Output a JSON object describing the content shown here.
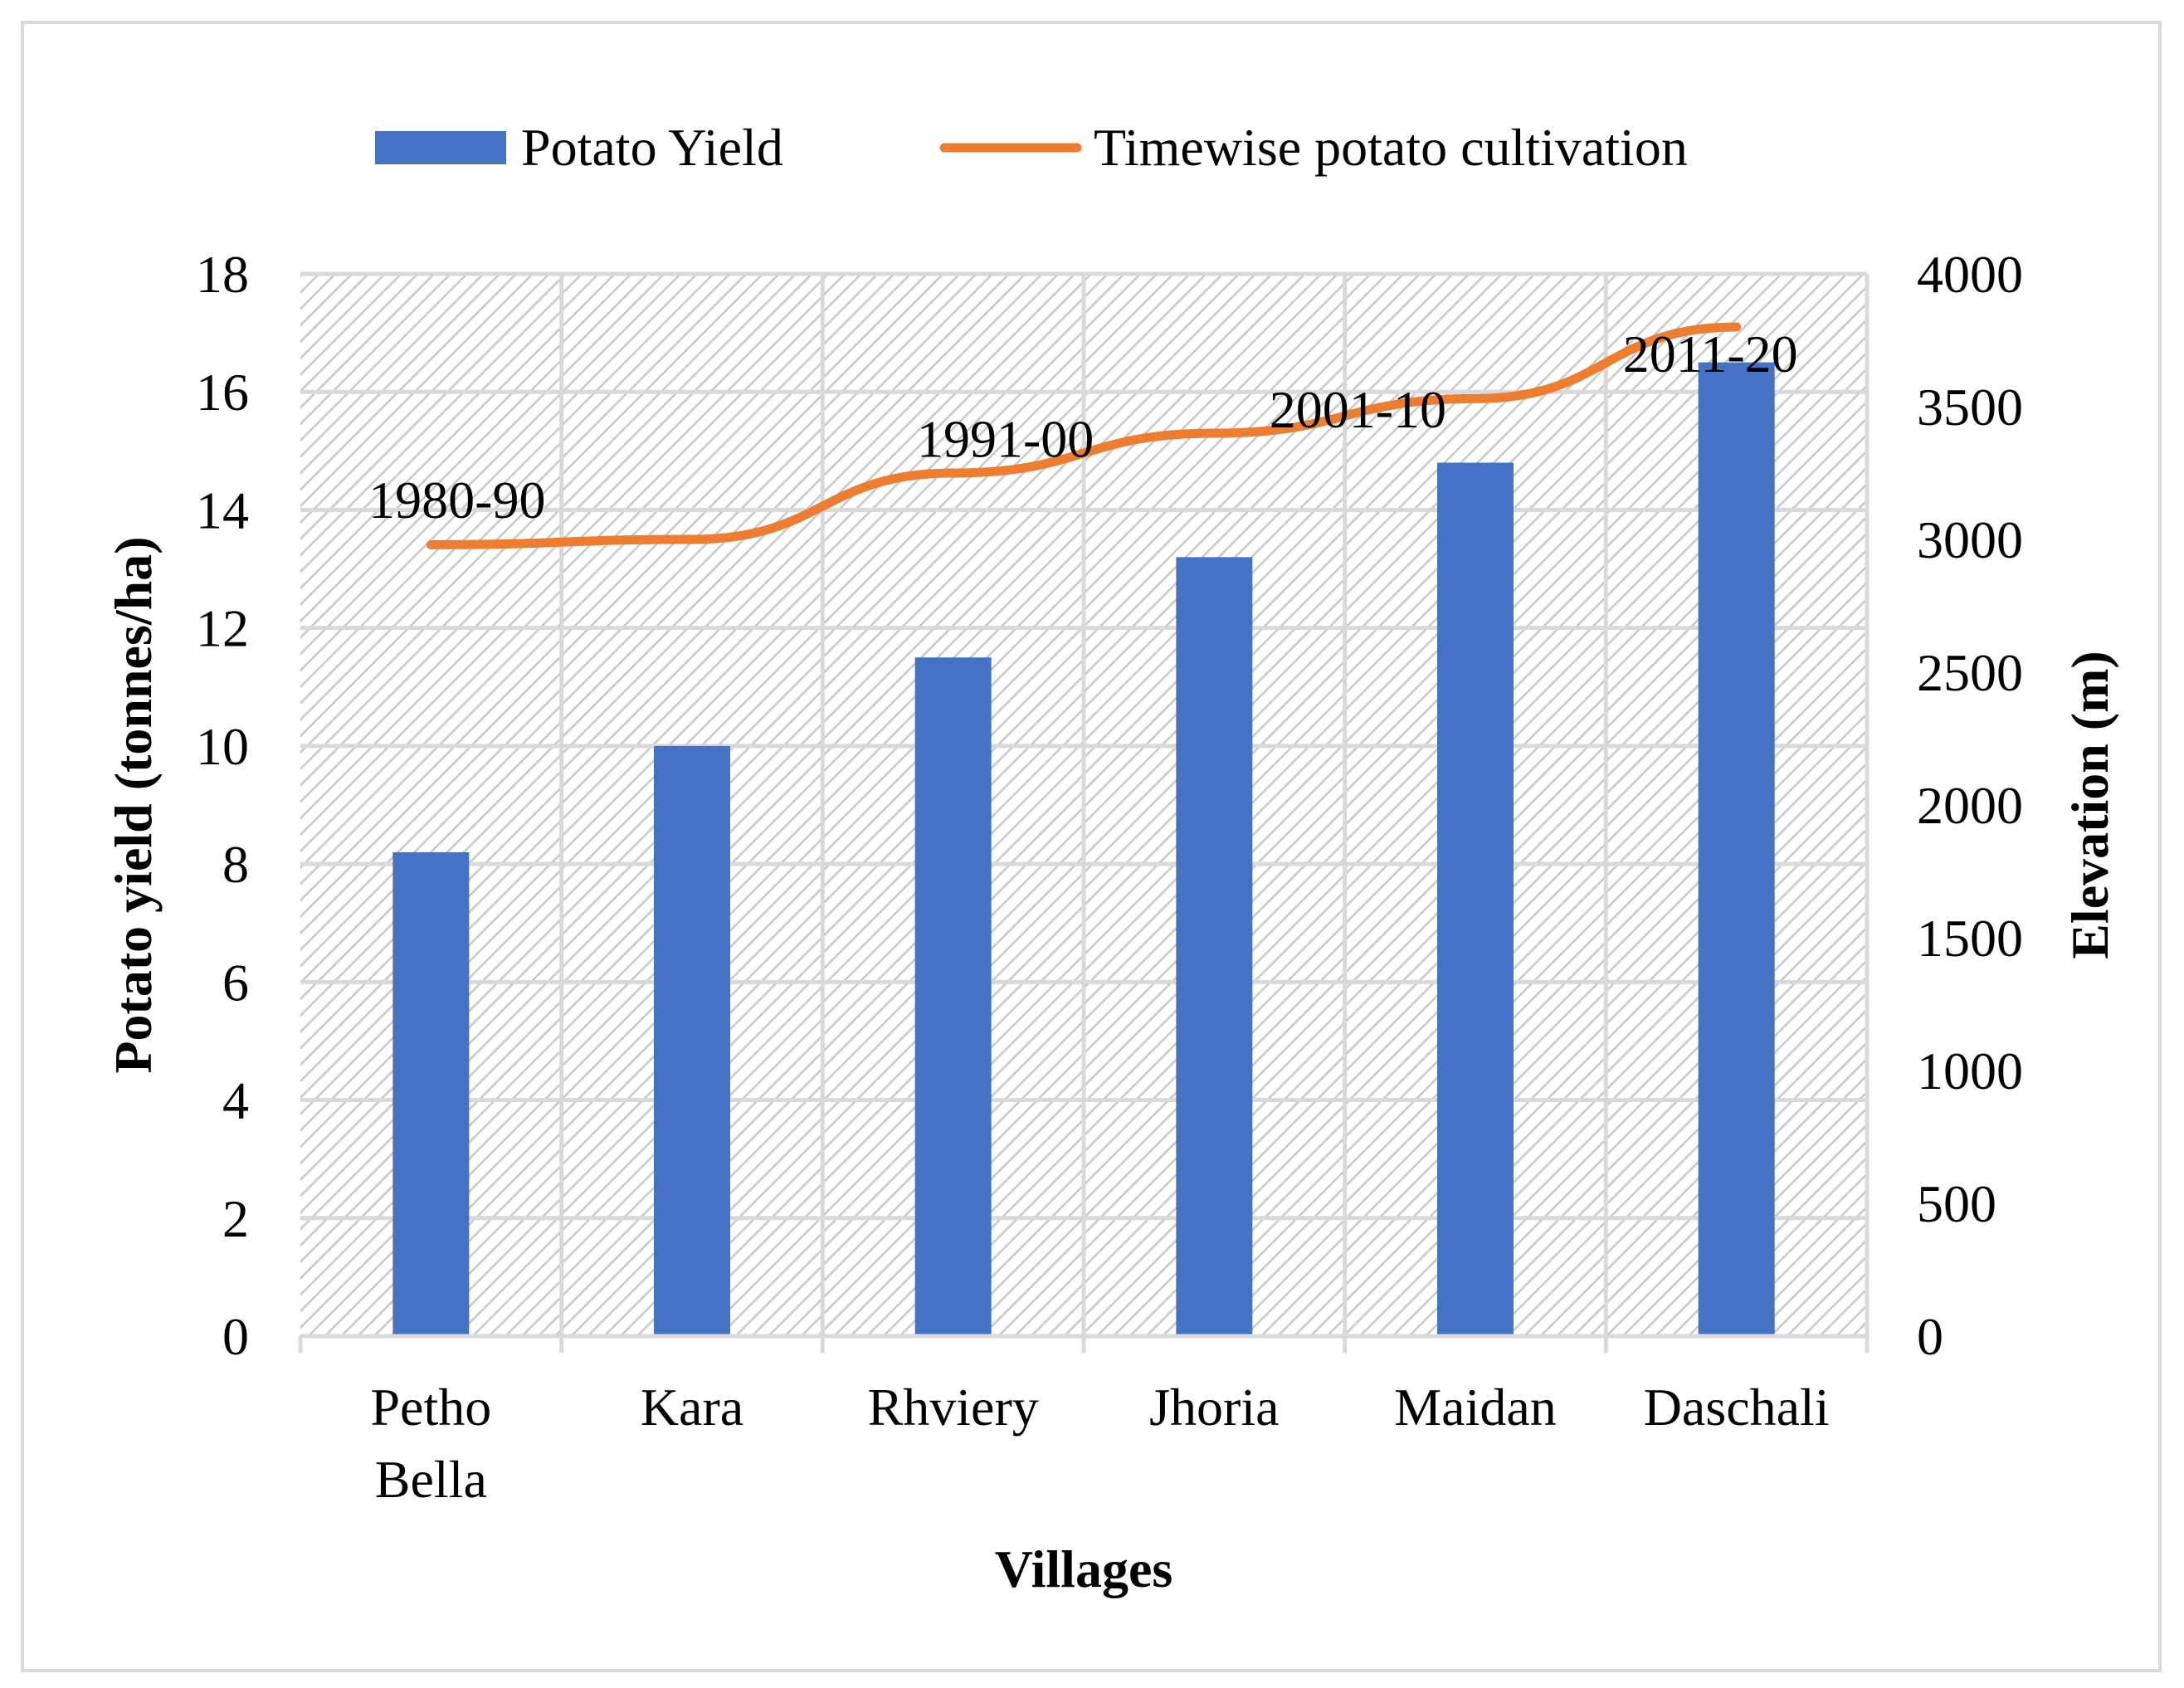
{
  "chart_data": {
    "type": "bar+line",
    "xlabel": "Villages",
    "ylabel_left": "Potato yield (tonnes/ha)",
    "ylabel_right": "Elevation (m)",
    "categories": [
      [
        "Petho",
        "Bella"
      ],
      [
        "Kara"
      ],
      [
        "Rhviery"
      ],
      [
        "Jhoria"
      ],
      [
        "Maidan"
      ],
      [
        "Daschali"
      ]
    ],
    "ylim_left": [
      0,
      18
    ],
    "yticks_left": [
      0,
      2,
      4,
      6,
      8,
      10,
      12,
      14,
      16,
      18
    ],
    "ylim_right": [
      0,
      4000
    ],
    "yticks_right": [
      0,
      500,
      1000,
      1500,
      2000,
      2500,
      3000,
      3500,
      4000
    ],
    "grid": true,
    "legend_position": "top",
    "series": [
      {
        "name": "Potato Yield",
        "type": "bar",
        "axis": "left",
        "color": "#4472c4",
        "values": [
          8.2,
          10.0,
          11.5,
          13.2,
          14.8,
          16.5
        ]
      },
      {
        "name": "Timewise potato cultivation",
        "type": "line",
        "axis": "right",
        "color": "#ed7d31",
        "values": [
          2980,
          3000,
          3250,
          3400,
          3530,
          3800
        ]
      }
    ],
    "annotations": [
      {
        "text": "1980-90",
        "x_position": 0.1,
        "y_value": 3150
      },
      {
        "text": "1991-00",
        "x_position": 2.2,
        "y_value": 3380
      },
      {
        "text": "2001-10",
        "x_position": 3.55,
        "y_value": 3490
      },
      {
        "text": "2011-20",
        "x_position": 4.9,
        "y_value": 3700
      }
    ]
  }
}
